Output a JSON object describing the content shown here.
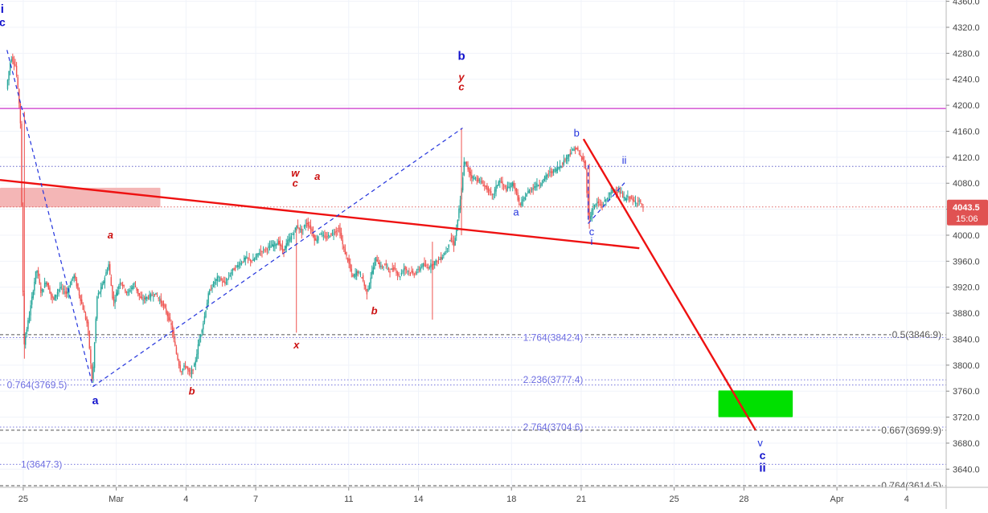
{
  "chart_data": {
    "type": "candlestick",
    "title": "",
    "xlabel": "",
    "ylabel": "",
    "ylim": [
      3612,
      4362
    ],
    "y_ticks": [
      {
        "value": 3640,
        "label": "3640.0"
      },
      {
        "value": 3680,
        "label": "3680.0"
      },
      {
        "value": 3720,
        "label": "3720.0"
      },
      {
        "value": 3760,
        "label": "3760.0"
      },
      {
        "value": 3800,
        "label": "3800.0"
      },
      {
        "value": 3840,
        "label": "3840.0"
      },
      {
        "value": 3880,
        "label": "3880.0"
      },
      {
        "value": 3920,
        "label": "3920.0"
      },
      {
        "value": 3960,
        "label": "3960.0"
      },
      {
        "value": 4000,
        "label": "4000.0"
      },
      {
        "value": 4040,
        "label": "4040.0"
      },
      {
        "value": 4080,
        "label": "4080.0"
      },
      {
        "value": 4120,
        "label": "4120.0"
      },
      {
        "value": 4160,
        "label": "4160.0"
      },
      {
        "value": 4200,
        "label": "4200.0"
      },
      {
        "value": 4240,
        "label": "4240.0"
      },
      {
        "value": 4280,
        "label": "4280.0"
      },
      {
        "value": 4320,
        "label": "4320.0"
      },
      {
        "value": 4360,
        "label": "4360.0"
      }
    ],
    "x_ticks": [
      {
        "day": 25,
        "label": "25"
      },
      {
        "day": 29,
        "label": "Mar"
      },
      {
        "day": 32,
        "label": "4"
      },
      {
        "day": 35,
        "label": "7"
      },
      {
        "day": 39,
        "label": "11"
      },
      {
        "day": 42,
        "label": "14"
      },
      {
        "day": 46,
        "label": "18"
      },
      {
        "day": 49,
        "label": "21"
      },
      {
        "day": 53,
        "label": "25"
      },
      {
        "day": 56,
        "label": "28"
      },
      {
        "day": 60,
        "label": "Apr"
      },
      {
        "day": 63,
        "label": "4"
      }
    ],
    "current_price": {
      "value": 4043.5,
      "label": "4043.5",
      "time": "15:06"
    },
    "price_path": [
      [
        24.3,
        4225
      ],
      [
        24.5,
        4275
      ],
      [
        24.7,
        4260
      ],
      [
        24.9,
        4185
      ],
      [
        25.05,
        3830
      ],
      [
        25.3,
        3880
      ],
      [
        25.6,
        3950
      ],
      [
        25.8,
        3910
      ],
      [
        26.0,
        3930
      ],
      [
        26.3,
        3900
      ],
      [
        26.6,
        3920
      ],
      [
        26.9,
        3910
      ],
      [
        27.2,
        3940
      ],
      [
        27.5,
        3900
      ],
      [
        27.8,
        3860
      ],
      [
        28.0,
        3770
      ],
      [
        28.2,
        3905
      ],
      [
        28.4,
        3920
      ],
      [
        28.7,
        3955
      ],
      [
        28.9,
        3895
      ],
      [
        29.2,
        3930
      ],
      [
        29.5,
        3910
      ],
      [
        29.8,
        3925
      ],
      [
        30.1,
        3900
      ],
      [
        30.4,
        3905
      ],
      [
        30.7,
        3910
      ],
      [
        31.0,
        3895
      ],
      [
        31.2,
        3880
      ],
      [
        31.4,
        3860
      ],
      [
        31.6,
        3820
      ],
      [
        31.8,
        3790
      ],
      [
        32.0,
        3800
      ],
      [
        32.2,
        3785
      ],
      [
        32.4,
        3800
      ],
      [
        32.6,
        3840
      ],
      [
        32.8,
        3870
      ],
      [
        33.0,
        3910
      ],
      [
        33.2,
        3925
      ],
      [
        33.4,
        3935
      ],
      [
        33.7,
        3925
      ],
      [
        34.0,
        3945
      ],
      [
        34.3,
        3955
      ],
      [
        34.6,
        3965
      ],
      [
        34.9,
        3960
      ],
      [
        35.2,
        3975
      ],
      [
        35.5,
        3980
      ],
      [
        35.8,
        3985
      ],
      [
        36.0,
        3990
      ],
      [
        36.2,
        3975
      ],
      [
        36.4,
        3990
      ],
      [
        36.6,
        4000
      ],
      [
        36.8,
        4015
      ],
      [
        37.0,
        4005
      ],
      [
        37.2,
        4020
      ],
      [
        37.4,
        4010
      ],
      [
        37.6,
        3990
      ],
      [
        37.8,
        4005
      ],
      [
        38.0,
        3995
      ],
      [
        38.2,
        4000
      ],
      [
        38.4,
        4005
      ],
      [
        38.6,
        4010
      ],
      [
        38.8,
        3980
      ],
      [
        39.0,
        3960
      ],
      [
        39.2,
        3935
      ],
      [
        39.4,
        3945
      ],
      [
        39.6,
        3935
      ],
      [
        39.8,
        3910
      ],
      [
        40.0,
        3940
      ],
      [
        40.2,
        3965
      ],
      [
        40.4,
        3950
      ],
      [
        40.6,
        3955
      ],
      [
        40.8,
        3945
      ],
      [
        41.0,
        3950
      ],
      [
        41.2,
        3935
      ],
      [
        41.4,
        3950
      ],
      [
        41.6,
        3945
      ],
      [
        41.8,
        3940
      ],
      [
        42.0,
        3945
      ],
      [
        42.2,
        3955
      ],
      [
        42.4,
        3950
      ],
      [
        42.6,
        3955
      ],
      [
        42.8,
        3960
      ],
      [
        43.0,
        3965
      ],
      [
        43.2,
        3975
      ],
      [
        43.4,
        3995
      ],
      [
        43.55,
        3985
      ],
      [
        43.7,
        4020
      ],
      [
        43.85,
        4060
      ],
      [
        44.0,
        4115
      ],
      [
        44.3,
        4090
      ],
      [
        44.6,
        4085
      ],
      [
        44.9,
        4075
      ],
      [
        45.2,
        4060
      ],
      [
        45.5,
        4085
      ],
      [
        45.8,
        4070
      ],
      [
        46.1,
        4080
      ],
      [
        46.4,
        4045
      ],
      [
        46.7,
        4065
      ],
      [
        47.0,
        4075
      ],
      [
        47.3,
        4080
      ],
      [
        47.6,
        4095
      ],
      [
        47.9,
        4100
      ],
      [
        48.2,
        4110
      ],
      [
        48.5,
        4125
      ],
      [
        48.8,
        4135
      ],
      [
        49.0,
        4120
      ],
      [
        49.2,
        4110
      ],
      [
        49.35,
        4020
      ],
      [
        49.5,
        4040
      ],
      [
        49.7,
        4050
      ],
      [
        49.9,
        4045
      ],
      [
        50.1,
        4055
      ],
      [
        50.3,
        4065
      ],
      [
        50.5,
        4070
      ],
      [
        50.7,
        4065
      ],
      [
        50.9,
        4055
      ],
      [
        51.1,
        4060
      ],
      [
        51.3,
        4050
      ],
      [
        51.5,
        4055
      ],
      [
        51.65,
        4043.5
      ]
    ],
    "price_points_note": "",
    "horizontal_lines": [
      {
        "value": 4195,
        "color": "#cc33cc",
        "style": "solid",
        "label": ""
      },
      {
        "value": 4106,
        "color": "#6666cc",
        "style": "dotted",
        "label": ""
      },
      {
        "value": 4043.5,
        "color": "#e06666",
        "style": "dotted",
        "label": ""
      },
      {
        "value": 3846.9,
        "color": "#555555",
        "style": "dashed",
        "label": "0.5(3846.9)"
      },
      {
        "value": 3842.4,
        "color": "#7777dd",
        "style": "dotted",
        "label": "1.764(3842.4)"
      },
      {
        "value": 3777.4,
        "color": "#7777dd",
        "style": "dotted",
        "label": "2.236(3777.4)"
      },
      {
        "value": 3769.5,
        "color": "#7777dd",
        "style": "dotted",
        "label": "0.764(3769.5)"
      },
      {
        "value": 3704.6,
        "color": "#7777dd",
        "style": "dotted",
        "label": "2.764(3704.6)"
      },
      {
        "value": 3699.9,
        "color": "#555555",
        "style": "dashed",
        "label": "0.667(3699.9)"
      },
      {
        "value": 3647.3,
        "color": "#7777dd",
        "style": "dotted",
        "label": "1(3647.3)"
      },
      {
        "value": 3614.5,
        "color": "#555555",
        "style": "dashed",
        "label": "0.764(3614.5)"
      }
    ],
    "zones": [
      {
        "from_day": 24.0,
        "to_day": 30.9,
        "from_value": 4043,
        "to_value": 4073,
        "color": "#f4b6b6"
      },
      {
        "from_day": 54.9,
        "to_day": 58.1,
        "from_value": 3720,
        "to_value": 3761,
        "color": "#00e000"
      }
    ],
    "trendlines": [
      {
        "points": [
          [
            24.0,
            4085
          ],
          [
            51.5,
            3980
          ]
        ],
        "color": "#ee1111",
        "style": "solid",
        "width": 2.4
      },
      {
        "points": [
          [
            49.1,
            4148
          ],
          [
            56.5,
            3700
          ]
        ],
        "color": "#ee1111",
        "style": "solid",
        "width": 2.4
      },
      {
        "points": [
          [
            24.3,
            4285
          ],
          [
            28.0,
            3767
          ]
        ],
        "color": "#2233dd",
        "style": "dashed",
        "width": 1.2
      },
      {
        "points": [
          [
            28.0,
            3767
          ],
          [
            43.9,
            4165
          ]
        ],
        "color": "#2233dd",
        "style": "dashed",
        "width": 1.2
      },
      {
        "points": [
          [
            49.3,
            4108
          ],
          [
            49.3,
            4018
          ]
        ],
        "color": "#2233dd",
        "style": "dashed",
        "width": 1.2
      },
      {
        "points": [
          [
            49.3,
            4018
          ],
          [
            50.9,
            4082
          ]
        ],
        "color": "#2233dd",
        "style": "dashed",
        "width": 1.2
      }
    ],
    "annotations": [
      {
        "text": "i",
        "day": 24.1,
        "value": 4342,
        "color": "#1111cc",
        "bold": true,
        "italic": false,
        "size": 15
      },
      {
        "text": "c",
        "day": 24.1,
        "value": 4322,
        "color": "#1111cc",
        "bold": true,
        "italic": false,
        "size": 14
      },
      {
        "text": "a",
        "day": 28.1,
        "value": 3740,
        "color": "#1111cc",
        "bold": true,
        "italic": false,
        "size": 14
      },
      {
        "text": "a",
        "day": 28.75,
        "value": 3995,
        "color": "#cc1111",
        "bold": true,
        "italic": true,
        "size": 13
      },
      {
        "text": "b",
        "day": 32.25,
        "value": 3755,
        "color": "#cc1111",
        "bold": true,
        "italic": true,
        "size": 13
      },
      {
        "text": "w",
        "day": 36.7,
        "value": 4090,
        "color": "#cc1111",
        "bold": true,
        "italic": true,
        "size": 13
      },
      {
        "text": "c",
        "day": 36.7,
        "value": 4075,
        "color": "#cc1111",
        "bold": true,
        "italic": true,
        "size": 13
      },
      {
        "text": "a",
        "day": 37.65,
        "value": 4085,
        "color": "#cc1111",
        "bold": true,
        "italic": true,
        "size": 13
      },
      {
        "text": "x",
        "day": 36.75,
        "value": 3826,
        "color": "#cc1111",
        "bold": true,
        "italic": true,
        "size": 13
      },
      {
        "text": "b",
        "day": 40.1,
        "value": 3878,
        "color": "#cc1111",
        "bold": true,
        "italic": true,
        "size": 13
      },
      {
        "text": "b",
        "day": 43.85,
        "value": 4270,
        "color": "#1111cc",
        "bold": true,
        "italic": false,
        "size": 15
      },
      {
        "text": "y",
        "day": 43.85,
        "value": 4238,
        "color": "#cc1111",
        "bold": true,
        "italic": true,
        "size": 13
      },
      {
        "text": "c",
        "day": 43.85,
        "value": 4223,
        "color": "#cc1111",
        "bold": true,
        "italic": true,
        "size": 13
      },
      {
        "text": "a",
        "day": 46.2,
        "value": 4030,
        "color": "#2233dd",
        "bold": false,
        "italic": false,
        "size": 13
      },
      {
        "text": "b",
        "day": 48.8,
        "value": 4152,
        "color": "#2233dd",
        "bold": false,
        "italic": false,
        "size": 13
      },
      {
        "text": "c",
        "day": 49.45,
        "value": 4000,
        "color": "#2233dd",
        "bold": false,
        "italic": false,
        "size": 13
      },
      {
        "text": "i",
        "day": 49.45,
        "value": 3985,
        "color": "#2233dd",
        "bold": false,
        "italic": false,
        "size": 13
      },
      {
        "text": "ii",
        "day": 50.85,
        "value": 4110,
        "color": "#2233dd",
        "bold": false,
        "italic": false,
        "size": 13
      },
      {
        "text": "v",
        "day": 56.7,
        "value": 3675,
        "color": "#2233dd",
        "bold": false,
        "italic": false,
        "size": 13
      },
      {
        "text": "c",
        "day": 56.8,
        "value": 3655,
        "color": "#1111cc",
        "bold": true,
        "italic": false,
        "size": 14
      },
      {
        "text": "ii",
        "day": 56.8,
        "value": 3636,
        "color": "#1111cc",
        "bold": true,
        "italic": false,
        "size": 15
      }
    ],
    "colors": {
      "up": "#26a69a",
      "down": "#ef5350",
      "grid": "#f0f3fa",
      "axis_text": "#444444",
      "price_tag_bg": "#e05252",
      "price_tag_text": "#ffffff"
    }
  }
}
